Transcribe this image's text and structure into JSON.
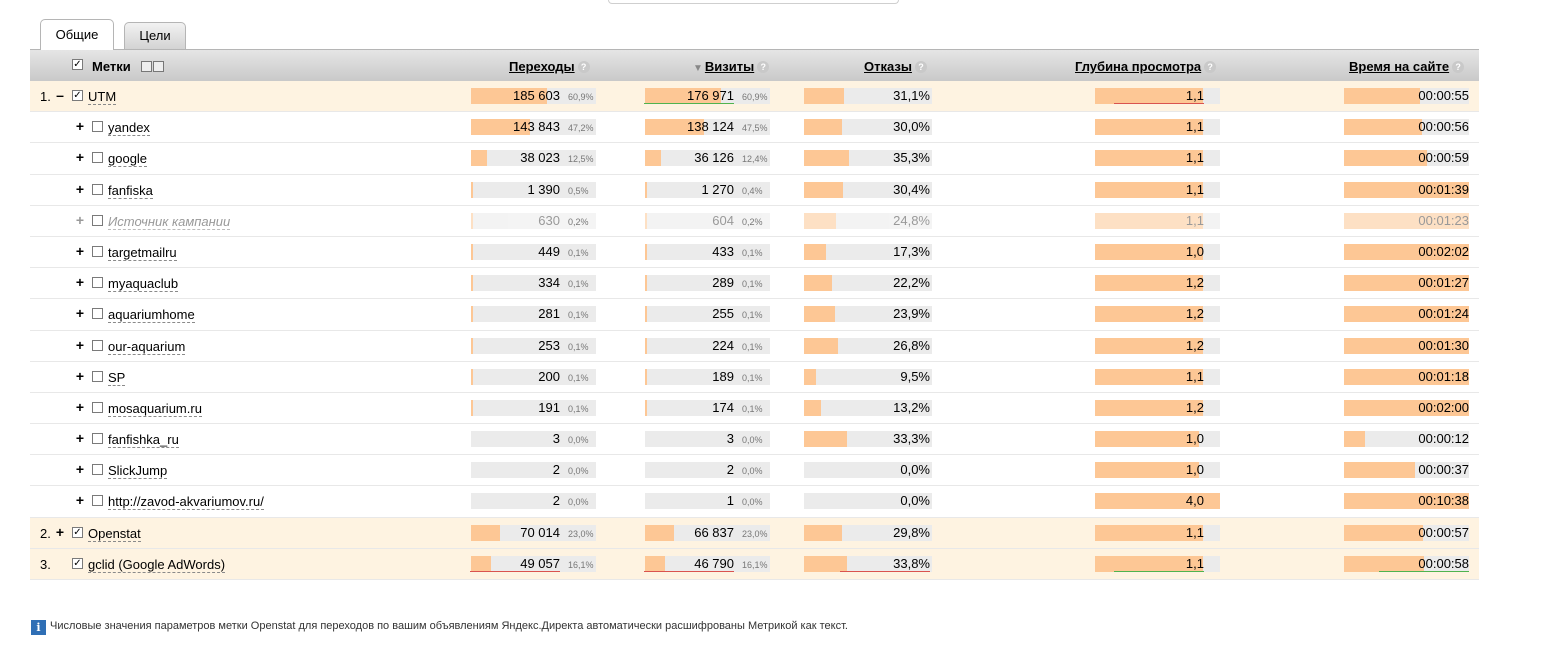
{
  "tabs": [
    {
      "label": "Общие",
      "active": true
    },
    {
      "label": "Цели",
      "active": false
    }
  ],
  "columns": {
    "labels": "Метки",
    "transitions": "Переходы",
    "visits": "Визиты",
    "bounces": "Отказы",
    "depth": "Глубина просмотра",
    "time": "Время на сайте"
  },
  "help_glyph": "?",
  "rows": [
    {
      "num": "1.",
      "toggle": "–",
      "checked": true,
      "name": "UTM",
      "level": 0,
      "highlight": true,
      "muted": false,
      "transitions": "185 603",
      "transitions_pct": "60,9%",
      "transitions_fill": 0.61,
      "visits": "176 971",
      "visits_pct": "60,9%",
      "visits_fill": 0.61,
      "bounces": "31,1%",
      "bounces_fill": 0.311,
      "depth": "1,1",
      "depth_fill": 0.86,
      "time": "00:00:55",
      "time_fill": 0.61
    },
    {
      "num": "",
      "toggle": "+",
      "checked": false,
      "name": "yandex",
      "level": 1,
      "highlight": false,
      "muted": false,
      "transitions": "143 843",
      "transitions_pct": "47,2%",
      "transitions_fill": 0.472,
      "visits": "138 124",
      "visits_pct": "47,5%",
      "visits_fill": 0.475,
      "bounces": "30,0%",
      "bounces_fill": 0.3,
      "depth": "1,1",
      "depth_fill": 0.86,
      "time": "00:00:56",
      "time_fill": 0.62
    },
    {
      "num": "",
      "toggle": "+",
      "checked": false,
      "name": "google",
      "level": 1,
      "highlight": false,
      "muted": false,
      "transitions": "38 023",
      "transitions_pct": "12,5%",
      "transitions_fill": 0.125,
      "visits": "36 126",
      "visits_pct": "12,4%",
      "visits_fill": 0.124,
      "bounces": "35,3%",
      "bounces_fill": 0.353,
      "depth": "1,1",
      "depth_fill": 0.86,
      "time": "00:00:59",
      "time_fill": 0.66
    },
    {
      "num": "",
      "toggle": "+",
      "checked": false,
      "name": "fanfiska",
      "level": 1,
      "highlight": false,
      "muted": false,
      "transitions": "1 390",
      "transitions_pct": "0,5%",
      "transitions_fill": 0.005,
      "visits": "1 270",
      "visits_pct": "0,4%",
      "visits_fill": 0.004,
      "bounces": "30,4%",
      "bounces_fill": 0.304,
      "depth": "1,1",
      "depth_fill": 0.86,
      "time": "00:01:39",
      "time_fill": 1.0
    },
    {
      "num": "",
      "toggle": "+",
      "checked": false,
      "name": "Источник кампании",
      "level": 1,
      "highlight": false,
      "muted": true,
      "transitions": "630",
      "transitions_pct": "0,2%",
      "transitions_fill": 0.002,
      "visits": "604",
      "visits_pct": "0,2%",
      "visits_fill": 0.002,
      "bounces": "24,8%",
      "bounces_fill": 0.248,
      "depth": "1,1",
      "depth_fill": 0.86,
      "time": "00:01:23",
      "time_fill": 1.0
    },
    {
      "num": "",
      "toggle": "+",
      "checked": false,
      "name": "targetmailru",
      "level": 1,
      "highlight": false,
      "muted": false,
      "transitions": "449",
      "transitions_pct": "0,1%",
      "transitions_fill": 0.001,
      "visits": "433",
      "visits_pct": "0,1%",
      "visits_fill": 0.001,
      "bounces": "17,3%",
      "bounces_fill": 0.173,
      "depth": "1,0",
      "depth_fill": 0.86,
      "time": "00:02:02",
      "time_fill": 1.0
    },
    {
      "num": "",
      "toggle": "+",
      "checked": false,
      "name": "myaquaclub",
      "level": 1,
      "highlight": false,
      "muted": false,
      "transitions": "334",
      "transitions_pct": "0,1%",
      "transitions_fill": 0.001,
      "visits": "289",
      "visits_pct": "0,1%",
      "visits_fill": 0.001,
      "bounces": "22,2%",
      "bounces_fill": 0.222,
      "depth": "1,2",
      "depth_fill": 0.86,
      "time": "00:01:27",
      "time_fill": 1.0
    },
    {
      "num": "",
      "toggle": "+",
      "checked": false,
      "name": "aquariumhome",
      "level": 1,
      "highlight": false,
      "muted": false,
      "transitions": "281",
      "transitions_pct": "0,1%",
      "transitions_fill": 0.001,
      "visits": "255",
      "visits_pct": "0,1%",
      "visits_fill": 0.001,
      "bounces": "23,9%",
      "bounces_fill": 0.239,
      "depth": "1,2",
      "depth_fill": 0.86,
      "time": "00:01:24",
      "time_fill": 1.0
    },
    {
      "num": "",
      "toggle": "+",
      "checked": false,
      "name": "our-aquarium",
      "level": 1,
      "highlight": false,
      "muted": false,
      "transitions": "253",
      "transitions_pct": "0,1%",
      "transitions_fill": 0.001,
      "visits": "224",
      "visits_pct": "0,1%",
      "visits_fill": 0.001,
      "bounces": "26,8%",
      "bounces_fill": 0.268,
      "depth": "1,2",
      "depth_fill": 0.86,
      "time": "00:01:30",
      "time_fill": 1.0
    },
    {
      "num": "",
      "toggle": "+",
      "checked": false,
      "name": "SP",
      "level": 1,
      "highlight": false,
      "muted": false,
      "transitions": "200",
      "transitions_pct": "0,1%",
      "transitions_fill": 0.001,
      "visits": "189",
      "visits_pct": "0,1%",
      "visits_fill": 0.001,
      "bounces": "9,5%",
      "bounces_fill": 0.095,
      "depth": "1,1",
      "depth_fill": 0.86,
      "time": "00:01:18",
      "time_fill": 1.0
    },
    {
      "num": "",
      "toggle": "+",
      "checked": false,
      "name": "mosaquarium.ru",
      "level": 1,
      "highlight": false,
      "muted": false,
      "transitions": "191",
      "transitions_pct": "0,1%",
      "transitions_fill": 0.001,
      "visits": "174",
      "visits_pct": "0,1%",
      "visits_fill": 0.001,
      "bounces": "13,2%",
      "bounces_fill": 0.132,
      "depth": "1,2",
      "depth_fill": 0.86,
      "time": "00:02:00",
      "time_fill": 1.0
    },
    {
      "num": "",
      "toggle": "+",
      "checked": false,
      "name": "fanfishka_ru",
      "level": 1,
      "highlight": false,
      "muted": false,
      "transitions": "3",
      "transitions_pct": "0,0%",
      "transitions_fill": 0.0,
      "visits": "3",
      "visits_pct": "0,0%",
      "visits_fill": 0.0,
      "bounces": "33,3%",
      "bounces_fill": 0.333,
      "depth": "1,0",
      "depth_fill": 0.83,
      "time": "00:00:12",
      "time_fill": 0.17
    },
    {
      "num": "",
      "toggle": "+",
      "checked": false,
      "name": "SlickJump",
      "level": 1,
      "highlight": false,
      "muted": false,
      "transitions": "2",
      "transitions_pct": "0,0%",
      "transitions_fill": 0.0,
      "visits": "2",
      "visits_pct": "0,0%",
      "visits_fill": 0.0,
      "bounces": "0,0%",
      "bounces_fill": 0.0,
      "depth": "1,0",
      "depth_fill": 0.83,
      "time": "00:00:37",
      "time_fill": 0.57
    },
    {
      "num": "",
      "toggle": "+",
      "checked": false,
      "name": "http://zavod-akvariumov.ru/",
      "level": 1,
      "highlight": false,
      "muted": false,
      "transitions": "2",
      "transitions_pct": "0,0%",
      "transitions_fill": 0.0,
      "visits": "1",
      "visits_pct": "0,0%",
      "visits_fill": 0.0,
      "bounces": "0,0%",
      "bounces_fill": 0.0,
      "depth": "4,0",
      "depth_fill": 1.0,
      "time": "00:10:38",
      "time_fill": 1.0
    },
    {
      "num": "2.",
      "toggle": "+",
      "checked": true,
      "name": "Openstat",
      "level": 0,
      "highlight": true,
      "muted": false,
      "transitions": "70 014",
      "transitions_pct": "23,0%",
      "transitions_fill": 0.23,
      "visits": "66 837",
      "visits_pct": "23,0%",
      "visits_fill": 0.23,
      "bounces": "29,8%",
      "bounces_fill": 0.298,
      "depth": "1,1",
      "depth_fill": 0.86,
      "time": "00:00:57",
      "time_fill": 0.63
    },
    {
      "num": "3.",
      "toggle": "",
      "checked": true,
      "name": "gclid (Google AdWords)",
      "level": 0,
      "highlight": true,
      "muted": false,
      "transitions": "49 057",
      "transitions_pct": "16,1%",
      "transitions_fill": 0.161,
      "visits": "46 790",
      "visits_pct": "16,1%",
      "visits_fill": 0.161,
      "bounces": "33,8%",
      "bounces_fill": 0.338,
      "depth": "1,1",
      "depth_fill": 0.86,
      "time": "00:00:58",
      "time_fill": 0.64
    }
  ],
  "note": "Числовые значения параметров метки Openstat для переходов по вашим объявлениям Яндекс.Директа автоматически расшифрованы Метрикой как текст.",
  "colors": {
    "bar_fill": "#fdc795",
    "bar_track": "#ebebeb",
    "highlight_row": "#fef3e1",
    "header": "#d6d6d6"
  }
}
